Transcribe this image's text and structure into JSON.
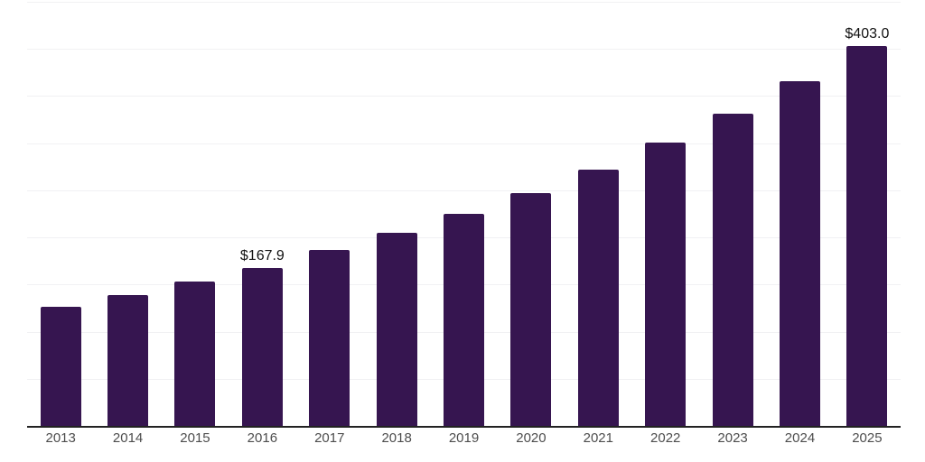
{
  "chart_data": {
    "type": "bar",
    "title": "",
    "xlabel": "",
    "ylabel": "",
    "categories": [
      "2013",
      "2014",
      "2015",
      "2016",
      "2017",
      "2018",
      "2019",
      "2020",
      "2021",
      "2022",
      "2023",
      "2024",
      "2025"
    ],
    "values": [
      126.1,
      138.6,
      152.9,
      167.9,
      186.4,
      204.5,
      224.6,
      247.5,
      272.4,
      301.0,
      331.6,
      366.0,
      403.0
    ],
    "data_labels": [
      "",
      "",
      "",
      "$167.9",
      "",
      "",
      "",
      "",
      "",
      "",
      "",
      "",
      "$403.0"
    ],
    "ylim": [
      0,
      450
    ],
    "gridline_step": 50,
    "grid": true,
    "legend": false,
    "colors": {
      "bar": "#361550",
      "gridline": "#f1f1f3",
      "axis": "#222222",
      "tick_label": "#4d4d4d",
      "data_label": "#111111",
      "background": "#ffffff"
    }
  }
}
